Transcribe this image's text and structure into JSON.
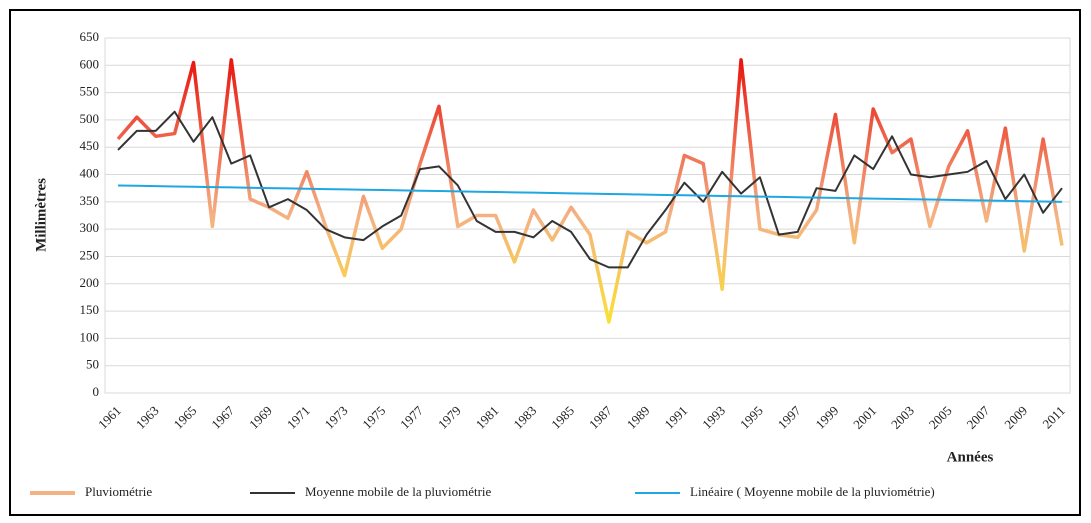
{
  "chart_data": {
    "type": "line",
    "categories": [
      "1961",
      null,
      "1963",
      null,
      "1965",
      null,
      "1967",
      null,
      "1969",
      null,
      "1971",
      null,
      "1973",
      null,
      "1975",
      null,
      "1977",
      null,
      "1979",
      null,
      "1981",
      null,
      "1983",
      null,
      "1985",
      null,
      "1987",
      null,
      "1989",
      null,
      "1991",
      null,
      "1993",
      null,
      "1995",
      null,
      "1997",
      null,
      "1999",
      null,
      "2001",
      null,
      "2003",
      null,
      "2005",
      null,
      "2007",
      null,
      "2009",
      null,
      "2011"
    ],
    "y_label": "Millimètres",
    "x_label": "Années",
    "ylim": [
      0,
      650
    ],
    "yticks": [
      0,
      50,
      100,
      150,
      200,
      250,
      300,
      350,
      400,
      450,
      500,
      550,
      600,
      650
    ],
    "grid": true,
    "legend": "bottom",
    "series": [
      {
        "name": "Pluviométrie",
        "colors": [
          "#ffff00",
          "#f4b183",
          "#e60000"
        ],
        "values": [
          465,
          505,
          470,
          475,
          605,
          305,
          610,
          355,
          340,
          320,
          405,
          305,
          215,
          360,
          265,
          300,
          420,
          525,
          305,
          325,
          325,
          240,
          335,
          280,
          340,
          290,
          130,
          295,
          275,
          295,
          435,
          420,
          190,
          610,
          300,
          290,
          285,
          335,
          510,
          275,
          520,
          440,
          465,
          305,
          415,
          480,
          315,
          485,
          260,
          465,
          270
        ]
      },
      {
        "name": "Moyenne mobile de la pluviométrie",
        "color": "#333333",
        "values": [
          445,
          480,
          480,
          515,
          460,
          505,
          420,
          435,
          340,
          355,
          335,
          300,
          285,
          280,
          305,
          325,
          410,
          415,
          380,
          315,
          295,
          295,
          285,
          315,
          295,
          245,
          230,
          230,
          290,
          335,
          385,
          350,
          405,
          365,
          395,
          290,
          295,
          375,
          370,
          435,
          410,
          470,
          400,
          395,
          400,
          405,
          425,
          355,
          400,
          330,
          375
        ]
      },
      {
        "name": "Linéaire ( Moyenne mobile de la pluviométrie)",
        "color": "#1ea7e0",
        "values": [
          380,
          379.4,
          378.8,
          378.2,
          377.6,
          377,
          376.4,
          375.8,
          375.2,
          374.6,
          374,
          373.4,
          372.8,
          372.2,
          371.6,
          371,
          370.4,
          369.8,
          369.2,
          368.6,
          368,
          367.4,
          366.8,
          366.2,
          365.6,
          365,
          364.4,
          363.8,
          363.2,
          362.6,
          362,
          361.4,
          360.8,
          360.2,
          359.6,
          359,
          358.4,
          357.8,
          357.2,
          356.6,
          356,
          355.4,
          354.8,
          354.2,
          353.6,
          353,
          352.4,
          351.8,
          351.2,
          350.6,
          350
        ]
      }
    ]
  }
}
